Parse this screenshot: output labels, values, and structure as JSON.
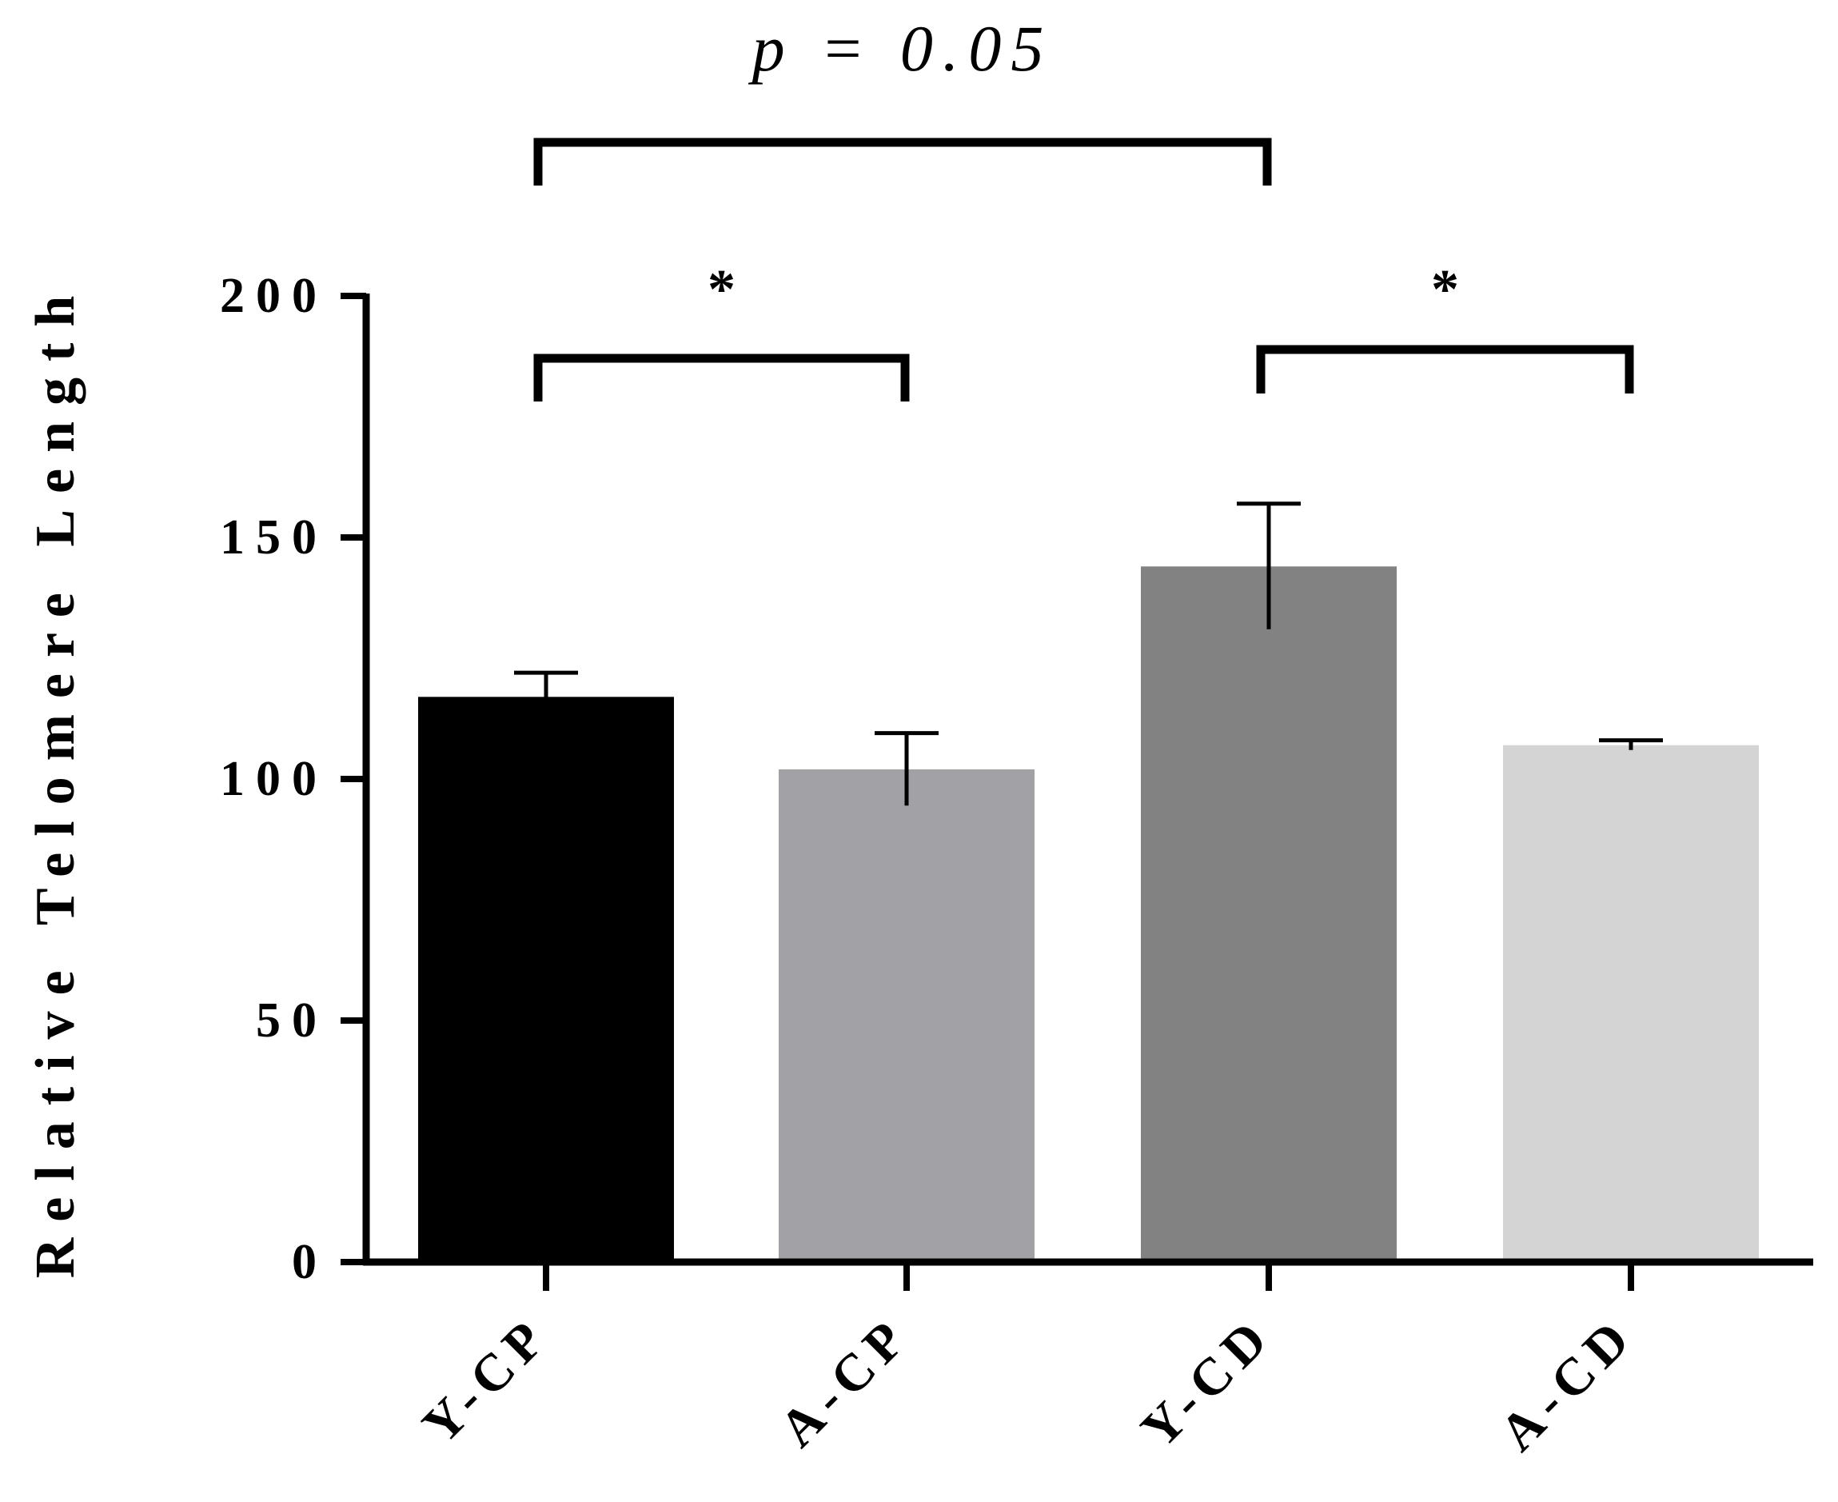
{
  "chart_data": {
    "type": "bar",
    "categories": [
      "Y-CP",
      "A-CP",
      "Y-CD",
      "A-CD"
    ],
    "values": [
      117,
      102,
      144,
      107
    ],
    "errors": [
      5,
      7.5,
      13,
      1
    ],
    "colors": [
      "#000000",
      "#a2a1a6",
      "#828282",
      "#d4d4d4"
    ],
    "title": "",
    "xlabel": "",
    "ylabel": "Relative Telomere Length",
    "ylim": [
      0,
      200
    ],
    "yticks": [
      "0",
      "50",
      "100",
      "150",
      "200"
    ],
    "grid": false,
    "annotations": [
      {
        "from": 0,
        "to": 2,
        "label": "p = 0.05"
      },
      {
        "from": 0,
        "to": 1,
        "label": "*"
      },
      {
        "from": 2,
        "to": 3,
        "label": "*"
      }
    ]
  }
}
